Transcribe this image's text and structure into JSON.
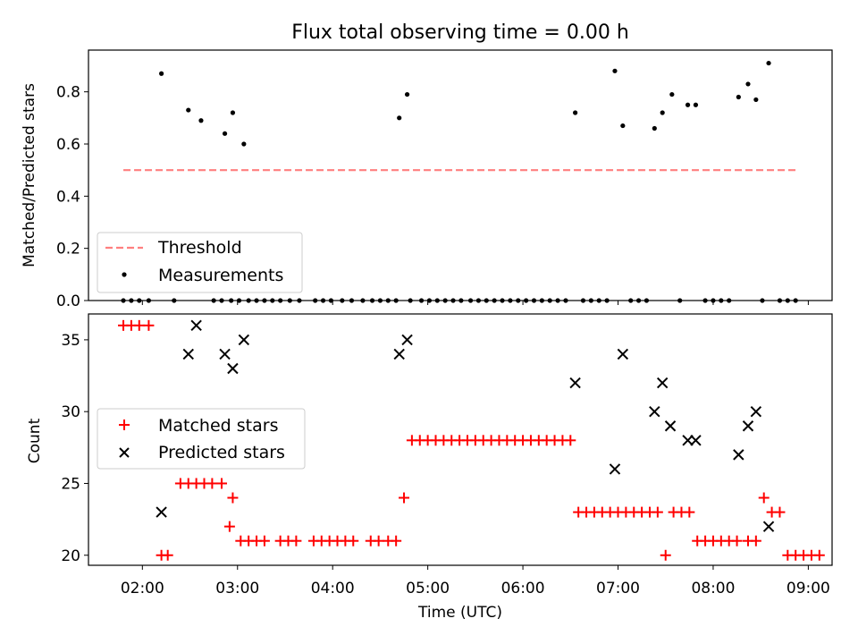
{
  "title": "Flux total observing time = 0.00 h",
  "colors": {
    "threshold": "#ff7f7f",
    "matched": "#ff0000",
    "predicted": "#000000",
    "measurements": "#000000"
  },
  "chart_data": [
    {
      "type": "scatter",
      "ylabel": "Matched/Predicted stars",
      "xlim": [
        "01:26",
        "09:15"
      ],
      "ylim": [
        0,
        0.96
      ],
      "yticks": [
        "0.0",
        "0.2",
        "0.4",
        "0.6",
        "0.8"
      ],
      "legend": {
        "placement": "lower-left",
        "entries": [
          "Threshold",
          "Measurements"
        ]
      },
      "series": [
        {
          "name": "Threshold",
          "kind": "dashed-line",
          "x": [
            "01:48",
            "08:53"
          ],
          "y": [
            0.5,
            0.5
          ]
        },
        {
          "name": "Measurements",
          "kind": "dots",
          "x": [
            "02:12",
            "02:29",
            "02:37",
            "02:52",
            "02:57",
            "03:04",
            "04:42",
            "04:47",
            "06:33",
            "06:58",
            "07:03",
            "07:23",
            "07:28",
            "07:34",
            "07:44",
            "07:49",
            "08:16",
            "08:22",
            "08:27",
            "08:35"
          ],
          "y": [
            0.87,
            0.73,
            0.69,
            0.64,
            0.72,
            0.6,
            0.7,
            0.79,
            0.72,
            0.88,
            0.67,
            0.66,
            0.72,
            0.79,
            0.75,
            0.75,
            0.78,
            0.83,
            0.77,
            0.91
          ]
        },
        {
          "name": "Measurements (zero)",
          "kind": "dots",
          "x": [
            "01:48",
            "01:53",
            "01:58",
            "02:04",
            "02:20",
            "02:45",
            "02:50",
            "02:56",
            "03:01",
            "03:07",
            "03:12",
            "03:17",
            "03:22",
            "03:27",
            "03:33",
            "03:39",
            "03:49",
            "03:54",
            "03:59",
            "04:06",
            "04:12",
            "04:19",
            "04:25",
            "04:30",
            "04:35",
            "04:40",
            "04:49",
            "04:56",
            "05:01",
            "05:06",
            "05:11",
            "05:16",
            "05:21",
            "05:27",
            "05:32",
            "05:37",
            "05:42",
            "05:47",
            "05:52",
            "05:57",
            "06:02",
            "06:07",
            "06:12",
            "06:17",
            "06:22",
            "06:27",
            "06:38",
            "06:43",
            "06:48",
            "06:53",
            "07:08",
            "07:13",
            "07:18",
            "07:39",
            "07:55",
            "08:00",
            "08:05",
            "08:10",
            "08:31",
            "08:42",
            "08:47",
            "08:52"
          ],
          "y": [
            0,
            0,
            0,
            0,
            0,
            0,
            0,
            0,
            0,
            0,
            0,
            0,
            0,
            0,
            0,
            0,
            0,
            0,
            0,
            0,
            0,
            0,
            0,
            0,
            0,
            0,
            0,
            0,
            0,
            0,
            0,
            0,
            0,
            0,
            0,
            0,
            0,
            0,
            0,
            0,
            0,
            0,
            0,
            0,
            0,
            0,
            0,
            0,
            0,
            0,
            0,
            0,
            0,
            0,
            0,
            0,
            0,
            0,
            0,
            0,
            0,
            0
          ]
        }
      ]
    },
    {
      "type": "scatter",
      "xlabel": "Time (UTC)",
      "ylabel": "Count",
      "xlim": [
        "01:26",
        "09:15"
      ],
      "ylim": [
        19.3,
        36.8
      ],
      "xticks": [
        "02:00",
        "03:00",
        "04:00",
        "05:00",
        "06:00",
        "07:00",
        "08:00",
        "09:00"
      ],
      "yticks": [
        "20",
        "25",
        "30",
        "35"
      ],
      "legend": {
        "placement": "center-left",
        "entries": [
          "Matched stars",
          "Predicted stars"
        ]
      },
      "series": [
        {
          "name": "Matched stars",
          "marker": "+",
          "x": [
            "01:48",
            "01:53",
            "01:58",
            "02:04",
            "02:12",
            "02:16",
            "02:24",
            "02:29",
            "02:34",
            "02:39",
            "02:44",
            "02:50",
            "02:55",
            "02:57",
            "03:02",
            "03:07",
            "03:12",
            "03:17",
            "03:27",
            "03:32",
            "03:37",
            "03:48",
            "03:53",
            "03:58",
            "04:03",
            "04:08",
            "04:13",
            "04:24",
            "04:29",
            "04:35",
            "04:40",
            "04:45",
            "04:50",
            "04:55",
            "05:00",
            "05:05",
            "05:10",
            "05:15",
            "05:20",
            "05:25",
            "05:30",
            "05:35",
            "05:40",
            "05:45",
            "05:50",
            "05:55",
            "06:00",
            "06:05",
            "06:10",
            "06:15",
            "06:20",
            "06:25",
            "06:30",
            "06:35",
            "06:40",
            "06:45",
            "06:50",
            "06:55",
            "07:00",
            "07:05",
            "07:10",
            "07:15",
            "07:20",
            "07:25",
            "07:30",
            "07:35",
            "07:40",
            "07:45",
            "07:50",
            "07:55",
            "08:00",
            "08:05",
            "08:10",
            "08:15",
            "08:22",
            "08:27",
            "08:32",
            "08:37",
            "08:42",
            "08:47",
            "08:52",
            "08:57",
            "09:02",
            "09:07"
          ],
          "y": [
            36,
            36,
            36,
            36,
            20,
            20,
            25,
            25,
            25,
            25,
            25,
            25,
            22,
            24,
            21,
            21,
            21,
            21,
            21,
            21,
            21,
            21,
            21,
            21,
            21,
            21,
            21,
            21,
            21,
            21,
            21,
            24,
            28,
            28,
            28,
            28,
            28,
            28,
            28,
            28,
            28,
            28,
            28,
            28,
            28,
            28,
            28,
            28,
            28,
            28,
            28,
            28,
            28,
            23,
            23,
            23,
            23,
            23,
            23,
            23,
            23,
            23,
            23,
            23,
            20,
            23,
            23,
            23,
            21,
            21,
            21,
            21,
            21,
            21,
            21,
            21,
            24,
            23,
            23,
            20,
            20,
            20,
            20,
            20
          ]
        },
        {
          "name": "Predicted stars",
          "marker": "x",
          "x": [
            "02:12",
            "02:29",
            "02:34",
            "02:52",
            "02:57",
            "03:04",
            "04:42",
            "04:47",
            "06:33",
            "06:58",
            "07:03",
            "07:23",
            "07:28",
            "07:33",
            "07:44",
            "07:49",
            "08:16",
            "08:22",
            "08:27",
            "08:35"
          ],
          "y": [
            23,
            34,
            36,
            34,
            33,
            35,
            34,
            35,
            32,
            26,
            34,
            30,
            32,
            29,
            28,
            28,
            27,
            29,
            30,
            22
          ]
        }
      ]
    }
  ]
}
